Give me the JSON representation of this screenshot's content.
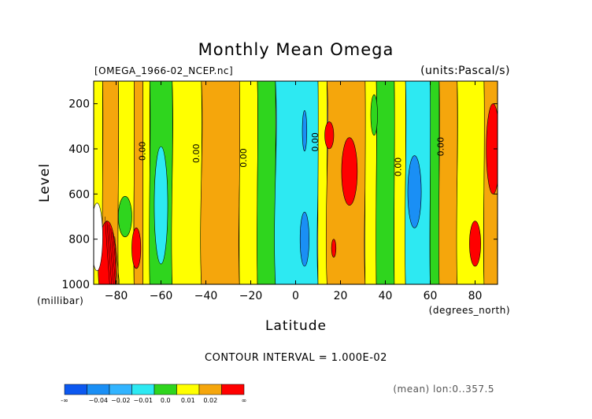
{
  "chart_data": {
    "type": "heatmap",
    "title": "Monthly Mean Omega",
    "file_label": "[OMEGA_1966-02_NCEP.nc]",
    "units_label": "(units:Pascal/s)",
    "xlabel": "Latitude",
    "x_units": "(degrees_north)",
    "ylabel": "Level",
    "y_units": "(millibar)",
    "xlim": [
      -90,
      90
    ],
    "ylim": [
      1000,
      100
    ],
    "x_ticks": [
      -80,
      -60,
      -40,
      -20,
      0,
      20,
      40,
      60,
      80
    ],
    "x_tick_labels": [
      "−80",
      "−60",
      "−40",
      "−20",
      "0",
      "20",
      "40",
      "60",
      "80"
    ],
    "y_ticks": [
      200,
      400,
      600,
      800,
      1000
    ],
    "y_tick_labels": [
      "200",
      "400",
      "600",
      "800",
      "1000"
    ],
    "contour_interval_text": "CONTOUR INTERVAL = 1.000E-02",
    "contour_labels": [
      {
        "text": "0.00",
        "lat": -67,
        "level": 410
      },
      {
        "text": "0.00",
        "lat": -43,
        "level": 420
      },
      {
        "text": "0.00",
        "lat": -22,
        "level": 440
      },
      {
        "text": "0.00",
        "lat": 10,
        "level": 370
      },
      {
        "text": "0.00",
        "lat": 47,
        "level": 480
      },
      {
        "text": "0.00",
        "lat": 66,
        "level": 390
      }
    ],
    "levels": [
      -0.04,
      -0.03,
      -0.02,
      -0.01,
      0.0,
      0.01,
      0.02
    ],
    "colorbar": {
      "colors": [
        "#0c58f0",
        "#1a8ff5",
        "#32b4ff",
        "#2de9f2",
        "#2fd51e",
        "#ffff00",
        "#f5a60c",
        "#ff0000"
      ],
      "tick_labels": [
        "-∞",
        "−0.04",
        "−0.02",
        "−0.01",
        "0.0",
        "0.01",
        "0.02",
        "∞"
      ]
    },
    "bands": [
      {
        "lat": [
          -90,
          -86
        ],
        "class": "yellow"
      },
      {
        "lat": [
          -86,
          -79
        ],
        "class": "orange"
      },
      {
        "lat": [
          -79,
          -72
        ],
        "class": "yellow"
      },
      {
        "lat": [
          -72,
          -68
        ],
        "class": "orange"
      },
      {
        "lat": [
          -68,
          -65
        ],
        "class": "yellow"
      },
      {
        "lat": [
          -65,
          -55
        ],
        "class": "green"
      },
      {
        "lat": [
          -55,
          -42
        ],
        "class": "yellow"
      },
      {
        "lat": [
          -42,
          -25
        ],
        "class": "orange"
      },
      {
        "lat": [
          -25,
          -17
        ],
        "class": "yellow"
      },
      {
        "lat": [
          -17,
          -9
        ],
        "class": "green"
      },
      {
        "lat": [
          -9,
          10
        ],
        "class": "cyan"
      },
      {
        "lat": [
          10,
          14
        ],
        "class": "yellow"
      },
      {
        "lat": [
          14,
          31
        ],
        "class": "orange"
      },
      {
        "lat": [
          31,
          36
        ],
        "class": "yellow"
      },
      {
        "lat": [
          36,
          44
        ],
        "class": "green"
      },
      {
        "lat": [
          44,
          49
        ],
        "class": "yellow"
      },
      {
        "lat": [
          49,
          60
        ],
        "class": "cyan"
      },
      {
        "lat": [
          60,
          64
        ],
        "class": "green"
      },
      {
        "lat": [
          64,
          72
        ],
        "class": "orange"
      },
      {
        "lat": [
          72,
          84
        ],
        "class": "yellow"
      },
      {
        "lat": [
          84,
          90
        ],
        "class": "orange"
      }
    ],
    "patches": [
      {
        "class": "red",
        "lat": -84,
        "level": 920,
        "dlat": 4,
        "dlev": 200
      },
      {
        "class": "white",
        "lat": -88.5,
        "level": 790,
        "dlat": 2.5,
        "dlev": 150
      },
      {
        "class": "green",
        "lat": -76,
        "level": 700,
        "dlat": 3,
        "dlev": 90
      },
      {
        "class": "red",
        "lat": -71,
        "level": 840,
        "dlat": 2,
        "dlev": 90
      },
      {
        "class": "cyan",
        "lat": -60,
        "level": 650,
        "dlat": 3,
        "dlev": 260
      },
      {
        "class": "blue",
        "lat": 4,
        "level": 320,
        "dlat": 1,
        "dlev": 90
      },
      {
        "class": "blue",
        "lat": 4,
        "level": 800,
        "dlat": 2,
        "dlev": 120
      },
      {
        "class": "red",
        "lat": 15,
        "level": 340,
        "dlat": 2,
        "dlev": 60
      },
      {
        "class": "red",
        "lat": 24,
        "level": 500,
        "dlat": 3.5,
        "dlev": 150
      },
      {
        "class": "red",
        "lat": 17,
        "level": 840,
        "dlat": 1,
        "dlev": 40
      },
      {
        "class": "blue",
        "lat": 53,
        "level": 590,
        "dlat": 3,
        "dlev": 160
      },
      {
        "class": "red",
        "lat": 80,
        "level": 820,
        "dlat": 2.5,
        "dlev": 100
      },
      {
        "class": "red",
        "lat": 88,
        "level": 400,
        "dlat": 3,
        "dlev": 200
      },
      {
        "class": "green",
        "lat": 35,
        "level": 250,
        "dlat": 1.5,
        "dlev": 90
      }
    ],
    "footer_text": "(mean) lon:0..357.5"
  }
}
